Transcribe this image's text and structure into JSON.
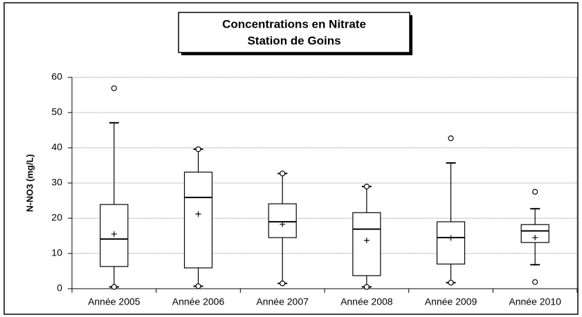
{
  "chart_data": {
    "type": "box",
    "title": "Concentrations en Nitrate",
    "subtitle": "Station de Goins",
    "y_label": "N-NO3 (mg/L)",
    "categories": [
      "Année 2005",
      "Année 2006",
      "Année 2007",
      "Année 2008",
      "Année 2009",
      "Année 2010"
    ],
    "min": [
      0.5,
      0.7,
      1.5,
      0.5,
      1.7,
      1.9
    ],
    "whisker_low": [
      0.5,
      0.7,
      1.5,
      0.5,
      1.7,
      6.8
    ],
    "q1": [
      6.3,
      5.9,
      14.5,
      3.7,
      7.0,
      13.1
    ],
    "median": [
      14.1,
      25.9,
      19.0,
      16.9,
      14.5,
      16.4
    ],
    "mean": [
      15.5,
      21.2,
      18.3,
      13.7,
      14.4,
      14.5
    ],
    "q3": [
      23.9,
      33.1,
      24.1,
      21.6,
      19.0,
      18.2
    ],
    "whisker_high": [
      47.1,
      39.6,
      32.7,
      29.0,
      35.7,
      22.7
    ],
    "max": [
      56.9,
      39.6,
      32.7,
      29.0,
      42.7,
      27.5
    ],
    "color": "#000000",
    "ylim": [
      0,
      60
    ],
    "yticks": [
      0,
      10,
      20,
      30,
      40,
      50,
      60
    ],
    "grid": true
  }
}
